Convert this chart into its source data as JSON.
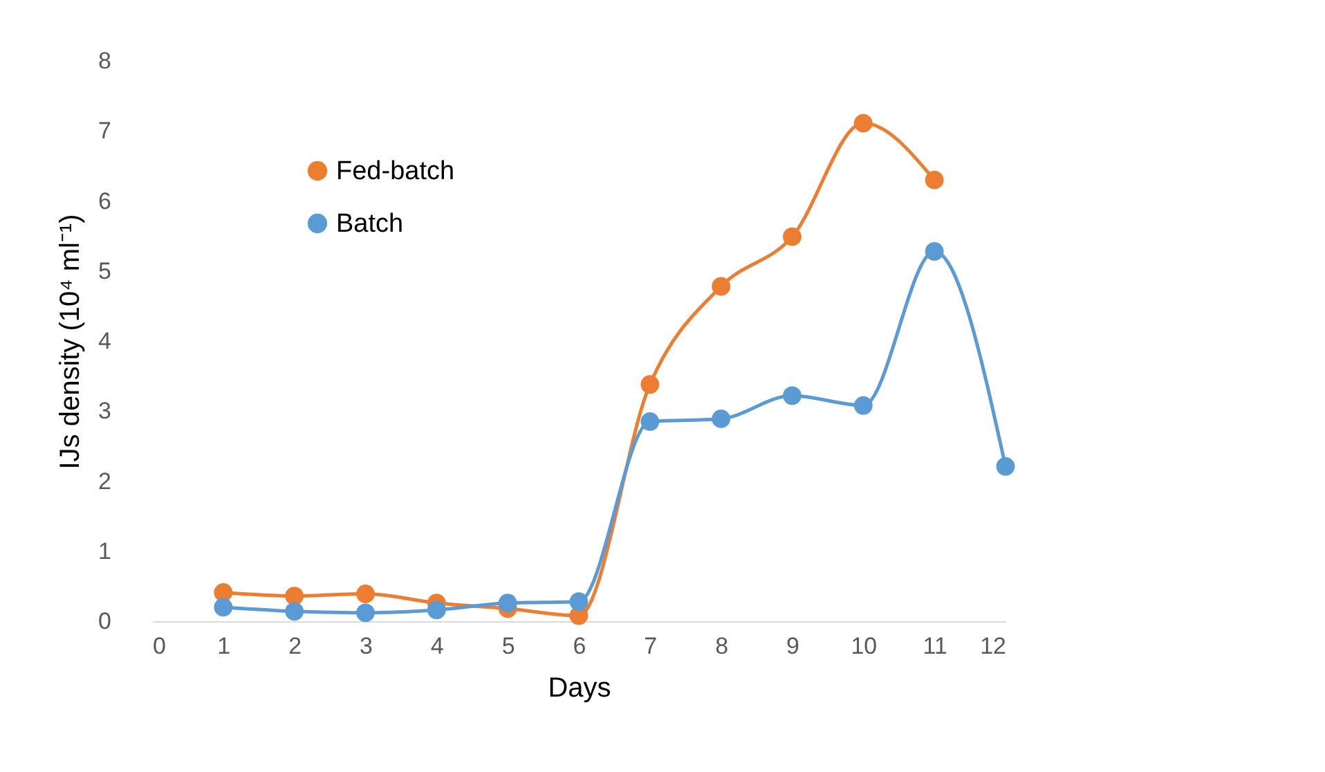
{
  "chart_data": {
    "type": "line",
    "xlabel": "Days",
    "ylabel": "IJs density (10⁴ ml⁻¹)",
    "xlim": [
      0,
      12
    ],
    "xticks": [
      0,
      1,
      2,
      3,
      4,
      5,
      6,
      7,
      8,
      9,
      10,
      11,
      12
    ],
    "ylim": [
      0,
      8
    ],
    "yticks": [
      0,
      1,
      2,
      3,
      4,
      5,
      6,
      7,
      8
    ],
    "grid": false,
    "legend": "top left",
    "marker": "circle",
    "line_style": "solid",
    "series": [
      {
        "name": "Fed-batch",
        "color": "#ed7d31",
        "x": [
          1,
          2,
          3,
          4,
          5,
          6,
          7,
          8,
          9,
          10,
          11
        ],
        "values": [
          0.41,
          0.36,
          0.39,
          0.26,
          0.18,
          0.08,
          3.38,
          4.78,
          5.49,
          7.11,
          6.3
        ]
      },
      {
        "name": "Batch",
        "color": "#5b9bd5",
        "x": [
          1,
          2,
          3,
          4,
          5,
          6,
          7,
          8,
          9,
          10,
          11,
          12
        ],
        "values": [
          0.2,
          0.14,
          0.12,
          0.16,
          0.26,
          0.28,
          2.85,
          2.89,
          3.22,
          3.08,
          5.28,
          2.21
        ]
      }
    ]
  }
}
